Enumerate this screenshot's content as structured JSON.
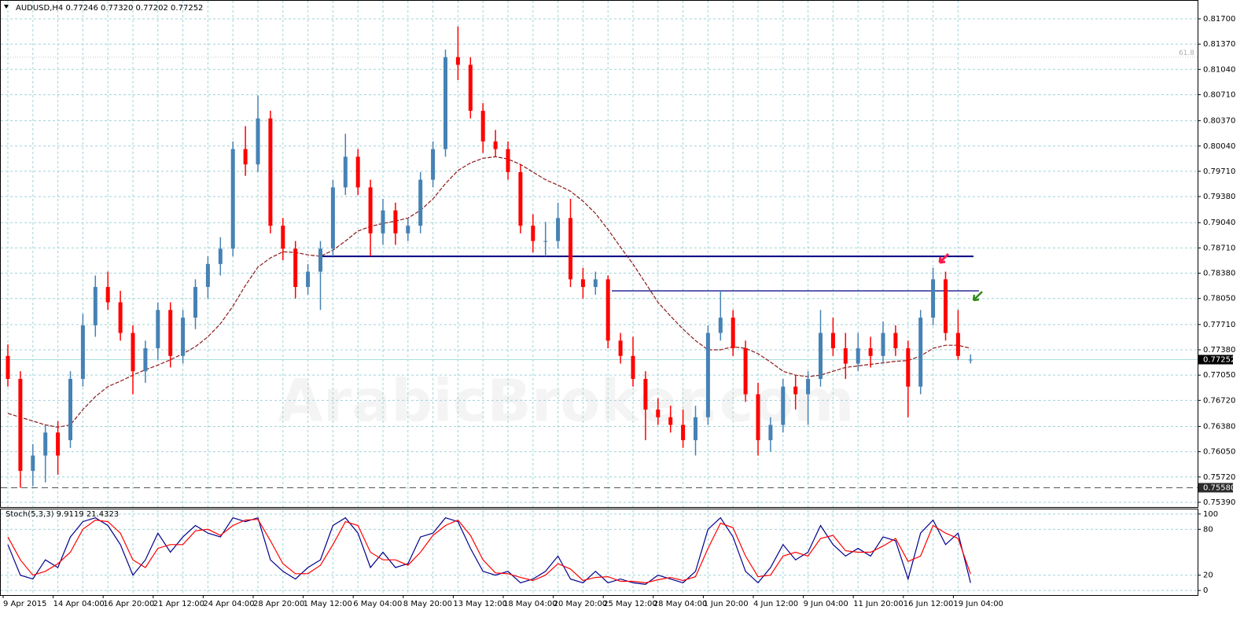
{
  "chart_data": {
    "type": "candlestick",
    "title": "AUDUSD,H4  0.77246 0.77320 0.77202 0.77252",
    "watermark": "ArabicBroker.com",
    "fib_label": "61.8",
    "categories": [
      "9 Apr 2015",
      null,
      null,
      null,
      "14 Apr 04:00",
      null,
      null,
      null,
      "16 Apr 20:00",
      null,
      null,
      null,
      "21 Apr 12:00",
      null,
      null,
      null,
      "24 Apr 04:00",
      null,
      null,
      null,
      "28 Apr 20:00",
      null,
      null,
      null,
      "1 May 12:00",
      null,
      null,
      null,
      "6 May 04:00",
      null,
      null,
      null,
      "8 May 20:00",
      null,
      null,
      null,
      "13 May 12:00",
      null,
      null,
      null,
      "18 May 04:00",
      null,
      null,
      null,
      "20 May 20:00",
      null,
      null,
      null,
      "25 May 12:00",
      null,
      null,
      null,
      "28 May 04:00",
      null,
      null,
      null,
      "1 Jun 20:00",
      null,
      null,
      null,
      "4 Jun 12:00",
      null,
      null,
      null,
      "9 Jun 04:00",
      null,
      null,
      null,
      "11 Jun 20:00",
      null,
      null,
      null,
      "16 Jun 12:00",
      null,
      null,
      null,
      "19 Jun 04:00",
      null
    ],
    "open": [
      0.773,
      0.77,
      0.758,
      0.76,
      0.763,
      0.762,
      0.77,
      0.777,
      0.782,
      0.78,
      0.776,
      0.771,
      0.774,
      0.779,
      0.773,
      0.778,
      0.782,
      0.785,
      0.787,
      0.8,
      0.798,
      0.804,
      0.79,
      0.787,
      0.782,
      0.784,
      0.787,
      0.795,
      0.799,
      0.795,
      0.789,
      0.792,
      0.789,
      0.79,
      0.796,
      0.8,
      0.812,
      0.811,
      0.805,
      0.801,
      0.8,
      0.797,
      0.79,
      0.788,
      0.788,
      0.791,
      0.783,
      0.782,
      0.783,
      0.775,
      0.773,
      0.77,
      0.766,
      0.765,
      0.764,
      0.762,
      0.765,
      0.776,
      0.778,
      0.774,
      0.768,
      0.762,
      0.764,
      0.769,
      0.768,
      0.77,
      0.776,
      0.774,
      0.772,
      0.774,
      0.773,
      0.776,
      0.774,
      0.769,
      0.778,
      0.783,
      0.776,
      0.77246
    ],
    "high": [
      0.7745,
      0.771,
      0.7615,
      0.764,
      0.7645,
      0.771,
      0.7785,
      0.7835,
      0.784,
      0.7815,
      0.777,
      0.775,
      0.78,
      0.78,
      0.779,
      0.783,
      0.786,
      0.7885,
      0.801,
      0.803,
      0.807,
      0.805,
      0.791,
      0.788,
      0.785,
      0.788,
      0.796,
      0.802,
      0.8,
      0.796,
      0.7935,
      0.793,
      0.791,
      0.797,
      0.801,
      0.813,
      0.816,
      0.812,
      0.806,
      0.8025,
      0.801,
      0.798,
      0.7915,
      0.7905,
      0.793,
      0.7935,
      0.7845,
      0.784,
      0.7835,
      0.776,
      0.7755,
      0.771,
      0.7675,
      0.7665,
      0.766,
      0.7665,
      0.777,
      0.7815,
      0.779,
      0.775,
      0.7695,
      0.765,
      0.77,
      0.7705,
      0.771,
      0.779,
      0.778,
      0.776,
      0.776,
      0.7755,
      0.7775,
      0.777,
      0.775,
      0.779,
      0.7845,
      0.784,
      0.779,
      0.7732
    ],
    "low": [
      0.769,
      0.7558,
      0.756,
      0.7565,
      0.7575,
      0.761,
      0.769,
      0.7755,
      0.779,
      0.775,
      0.768,
      0.7695,
      0.7725,
      0.7715,
      0.772,
      0.7765,
      0.7805,
      0.7835,
      0.786,
      0.7965,
      0.797,
      0.789,
      0.7855,
      0.7805,
      0.781,
      0.779,
      0.786,
      0.794,
      0.794,
      0.786,
      0.7875,
      0.7875,
      0.788,
      0.789,
      0.795,
      0.799,
      0.809,
      0.804,
      0.7995,
      0.799,
      0.796,
      0.789,
      0.7865,
      0.786,
      0.787,
      0.782,
      0.7805,
      0.781,
      0.774,
      0.772,
      0.769,
      0.762,
      0.764,
      0.763,
      0.761,
      0.76,
      0.764,
      0.775,
      0.773,
      0.767,
      0.76,
      0.7605,
      0.763,
      0.766,
      0.764,
      0.769,
      0.773,
      0.77,
      0.771,
      0.7715,
      0.772,
      0.773,
      0.765,
      0.768,
      0.777,
      0.775,
      0.7725,
      0.77202
    ],
    "close": [
      0.77,
      0.758,
      0.76,
      0.763,
      0.76,
      0.77,
      0.777,
      0.782,
      0.78,
      0.776,
      0.771,
      0.774,
      0.779,
      0.773,
      0.778,
      0.782,
      0.785,
      0.787,
      0.8,
      0.798,
      0.804,
      0.79,
      0.787,
      0.782,
      0.784,
      0.787,
      0.795,
      0.799,
      0.795,
      0.789,
      0.792,
      0.789,
      0.79,
      0.796,
      0.8,
      0.812,
      0.811,
      0.805,
      0.801,
      0.8,
      0.797,
      0.79,
      0.788,
      0.788,
      0.791,
      0.783,
      0.782,
      0.783,
      0.775,
      0.773,
      0.77,
      0.766,
      0.765,
      0.764,
      0.762,
      0.765,
      0.776,
      0.778,
      0.774,
      0.768,
      0.762,
      0.764,
      0.769,
      0.768,
      0.77,
      0.776,
      0.774,
      0.772,
      0.774,
      0.773,
      0.776,
      0.774,
      0.769,
      0.778,
      0.783,
      0.776,
      0.773,
      0.77252
    ],
    "up_color": "#4682b4",
    "down_color": "#ff0000",
    "moving_average": {
      "color": "#8b1a1a",
      "values": [
        0.7655,
        0.765,
        0.7645,
        0.764,
        0.7637,
        0.764,
        0.766,
        0.7677,
        0.769,
        0.7697,
        0.7705,
        0.7712,
        0.7718,
        0.7725,
        0.7733,
        0.7742,
        0.7755,
        0.7772,
        0.7795,
        0.7822,
        0.7846,
        0.7858,
        0.7866,
        0.7865,
        0.7862,
        0.786,
        0.7868,
        0.788,
        0.7893,
        0.7899,
        0.7903,
        0.7906,
        0.791,
        0.792,
        0.7935,
        0.7955,
        0.7972,
        0.7982,
        0.7988,
        0.799,
        0.7987,
        0.798,
        0.797,
        0.796,
        0.7953,
        0.7945,
        0.7932,
        0.7916,
        0.7895,
        0.7872,
        0.785,
        0.7825,
        0.78,
        0.7782,
        0.7765,
        0.775,
        0.7738,
        0.7738,
        0.7742,
        0.774,
        0.7733,
        0.7722,
        0.771,
        0.7705,
        0.7703,
        0.7705,
        0.771,
        0.7715,
        0.7717,
        0.7719,
        0.7721,
        0.7723,
        0.7724,
        0.773,
        0.774,
        0.7744,
        0.7744,
        0.774
      ]
    },
    "levels": [
      {
        "value": 0.786,
        "color": "#000080"
      },
      {
        "value": 0.7815,
        "color": "#000080"
      }
    ],
    "support": {
      "value": 0.7558,
      "label": "0.75580"
    },
    "last_price": {
      "value": 0.77252,
      "label": "0.77252"
    },
    "fib_level": 0.812,
    "ylim": [
      0.75328,
      0.81946
    ],
    "yticks": [
      {
        "value": 0.7539,
        "label": "0.75390"
      },
      {
        "value": 0.7572,
        "label": "0.75720"
      },
      {
        "value": 0.7605,
        "label": "0.76050"
      },
      {
        "value": 0.7638,
        "label": "0.76380"
      },
      {
        "value": 0.7672,
        "label": "0.76720"
      },
      {
        "value": 0.7705,
        "label": "0.77050"
      },
      {
        "value": 0.7738,
        "label": "0.77380"
      },
      {
        "value": 0.7771,
        "label": "0.77710"
      },
      {
        "value": 0.7805,
        "label": "0.78050"
      },
      {
        "value": 0.7838,
        "label": "0.78380"
      },
      {
        "value": 0.7871,
        "label": "0.78710"
      },
      {
        "value": 0.7904,
        "label": "0.79040"
      },
      {
        "value": 0.7938,
        "label": "0.79380"
      },
      {
        "value": 0.7971,
        "label": "0.79710"
      },
      {
        "value": 0.8004,
        "label": "0.80040"
      },
      {
        "value": 0.8037,
        "label": "0.80370"
      },
      {
        "value": 0.8071,
        "label": "0.80710"
      },
      {
        "value": 0.8104,
        "label": "0.81040"
      },
      {
        "value": 0.8137,
        "label": "0.81370"
      },
      {
        "value": 0.817,
        "label": "0.81700"
      }
    ],
    "grid": true,
    "oscillator": {
      "title": "Stoch(5,3,3) 9.9119 21.4323",
      "ylim": [
        -6,
        105
      ],
      "yticks": [
        0,
        20,
        80,
        100
      ],
      "series": [
        {
          "color": "#00008b",
          "values": [
            60,
            20,
            15,
            40,
            30,
            70,
            90,
            95,
            85,
            60,
            20,
            40,
            75,
            50,
            70,
            85,
            75,
            70,
            95,
            90,
            95,
            40,
            25,
            15,
            30,
            40,
            85,
            95,
            75,
            30,
            50,
            30,
            35,
            70,
            75,
            95,
            90,
            55,
            25,
            20,
            25,
            10,
            15,
            25,
            45,
            15,
            10,
            25,
            10,
            15,
            10,
            8,
            20,
            15,
            10,
            25,
            80,
            95,
            70,
            25,
            10,
            30,
            60,
            40,
            50,
            85,
            60,
            45,
            55,
            45,
            70,
            65,
            15,
            75,
            92,
            60,
            75,
            9.9119
          ]
        },
        {
          "color": "#ff0000",
          "values": [
            70,
            40,
            20,
            25,
            35,
            50,
            80,
            92,
            90,
            75,
            40,
            30,
            55,
            60,
            60,
            78,
            80,
            72,
            85,
            92,
            93,
            65,
            35,
            22,
            22,
            33,
            60,
            90,
            85,
            50,
            40,
            40,
            33,
            50,
            72,
            85,
            92,
            72,
            40,
            23,
            22,
            17,
            13,
            20,
            35,
            28,
            13,
            17,
            18,
            12,
            12,
            10,
            14,
            17,
            13,
            18,
            55,
            88,
            82,
            45,
            18,
            20,
            45,
            50,
            45,
            68,
            72,
            52,
            50,
            50,
            58,
            68,
            38,
            45,
            85,
            75,
            68,
            21.4323
          ]
        }
      ]
    }
  }
}
